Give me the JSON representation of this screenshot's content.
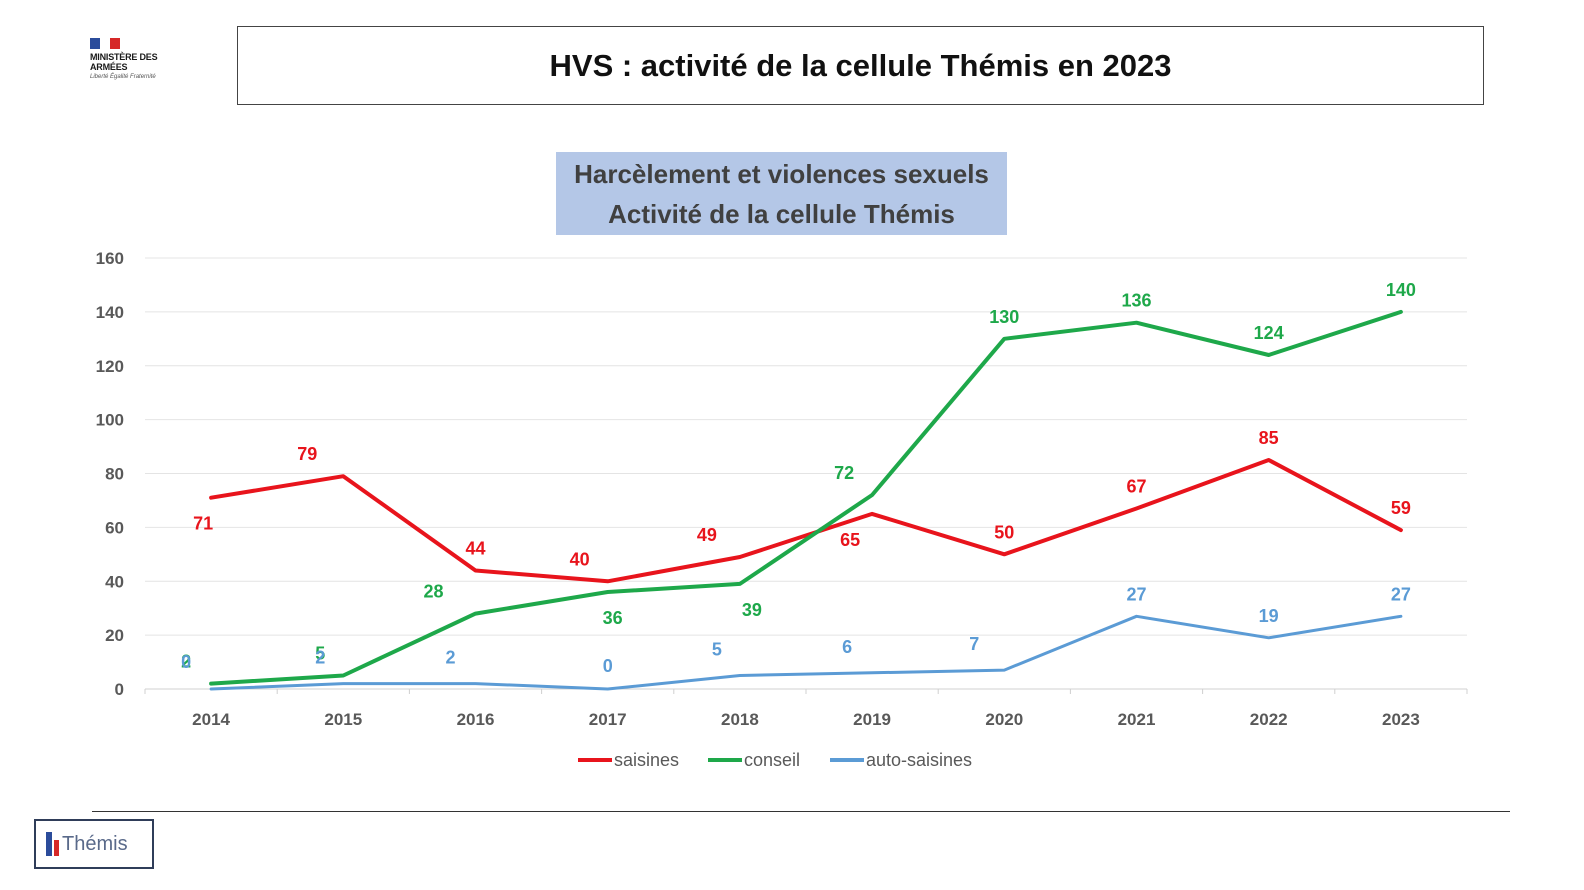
{
  "page": {
    "logo": {
      "org_name": "MINISTÈRE DES ARMÉES",
      "motto": "Liberté Égalité Fraternité",
      "flag_colors": [
        "#2b4c9b",
        "#ffffff",
        "#d62828"
      ]
    },
    "slide_title": "HVS : activité de la cellule Thémis en 2023",
    "footer_badge": "Thémis"
  },
  "chart_data": {
    "type": "line",
    "title_lines": [
      "Harcèlement et violences sexuels",
      "Activité de la cellule Thémis"
    ],
    "title_background": "#b4c7e7",
    "categories": [
      "2014",
      "2015",
      "2016",
      "2017",
      "2018",
      "2019",
      "2020",
      "2021",
      "2022",
      "2023"
    ],
    "ylim": [
      0,
      160
    ],
    "yticks": [
      0,
      20,
      40,
      60,
      80,
      100,
      120,
      140,
      160
    ],
    "grid": true,
    "legend_position": "bottom",
    "series": [
      {
        "name": "saisines",
        "color": "#e8141c",
        "values": [
          71,
          79,
          44,
          40,
          49,
          65,
          50,
          67,
          85,
          59
        ]
      },
      {
        "name": "conseil",
        "color": "#1ea84a",
        "values": [
          2,
          5,
          28,
          36,
          39,
          72,
          130,
          136,
          124,
          140
        ]
      },
      {
        "name": "auto-saisines",
        "color": "#5b9bd5",
        "values": [
          0,
          2,
          2,
          0,
          5,
          6,
          7,
          27,
          19,
          27
        ]
      }
    ]
  }
}
